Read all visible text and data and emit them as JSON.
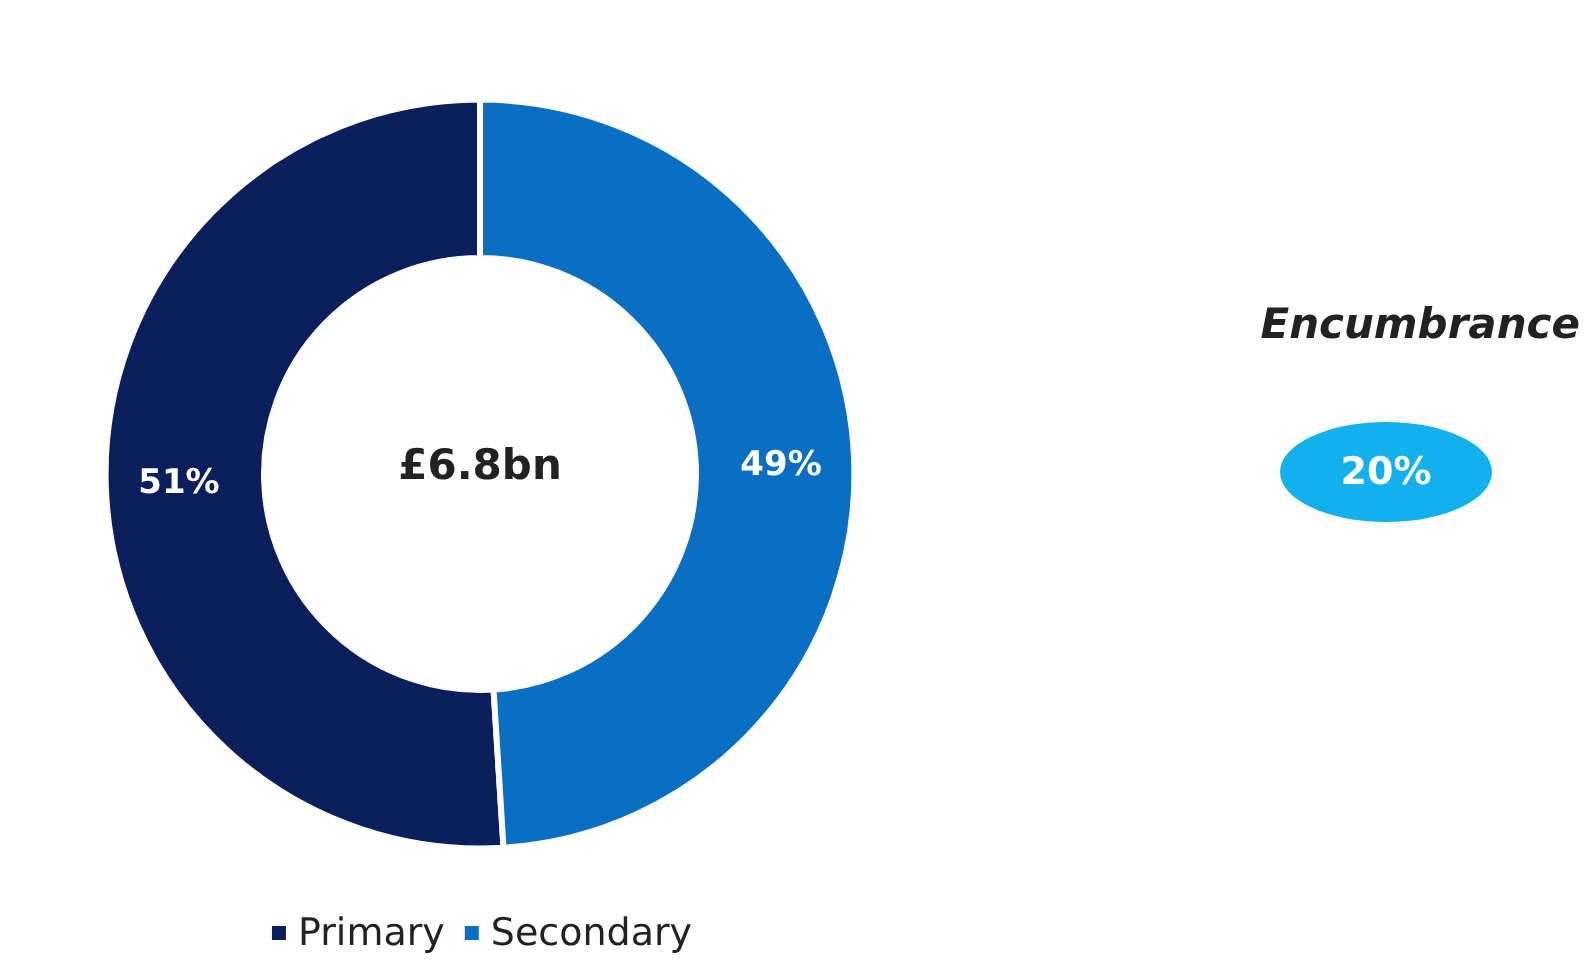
{
  "chart_data": {
    "type": "donut",
    "categories": [
      "Primary",
      "Secondary"
    ],
    "values": [
      51,
      49
    ],
    "colors": [
      "#0b1f5c",
      "#0a6fc2"
    ],
    "value_labels": [
      "51%",
      "49%"
    ],
    "legend": "bottom",
    "annotations": [
      "£6.8bn",
      "Encumbrance",
      "20%"
    ]
  }
}
